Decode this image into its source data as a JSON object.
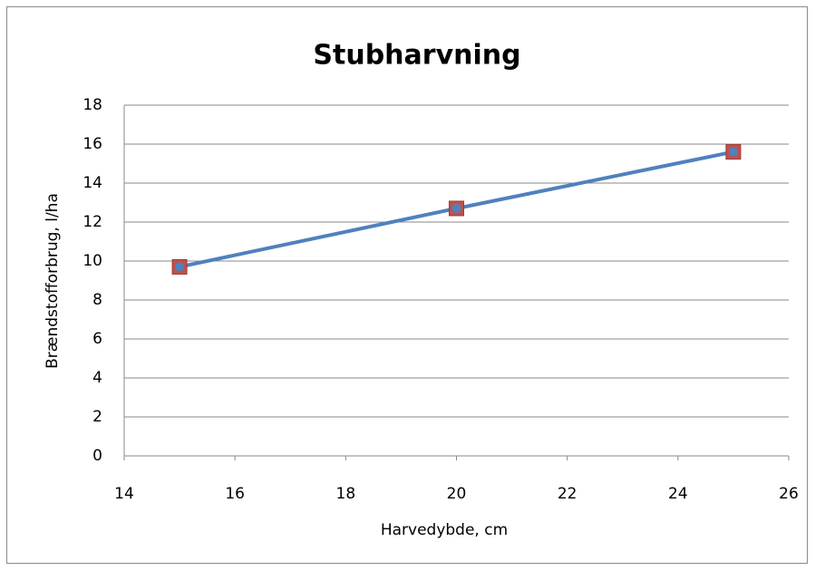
{
  "chart_data": {
    "type": "scatter",
    "title": "Stubharvning",
    "xlabel": "Harvedybde, cm",
    "ylabel": "Brændstofforbrug, l/ha",
    "x": [
      15,
      20,
      25
    ],
    "series": [
      {
        "values": [
          9.7,
          12.7,
          15.6
        ],
        "color": "#c0504d",
        "marker": "square"
      },
      {
        "values": [
          9.7,
          12.7,
          15.6
        ],
        "color": "#4f81bd",
        "marker": "circle",
        "line": true
      }
    ],
    "xlim": [
      14,
      26
    ],
    "xticks": [
      14,
      16,
      18,
      20,
      22,
      24,
      26
    ],
    "ylim": [
      0,
      18
    ],
    "yticks": [
      0,
      2,
      4,
      6,
      8,
      10,
      12,
      14,
      16,
      18
    ],
    "grid": true
  }
}
